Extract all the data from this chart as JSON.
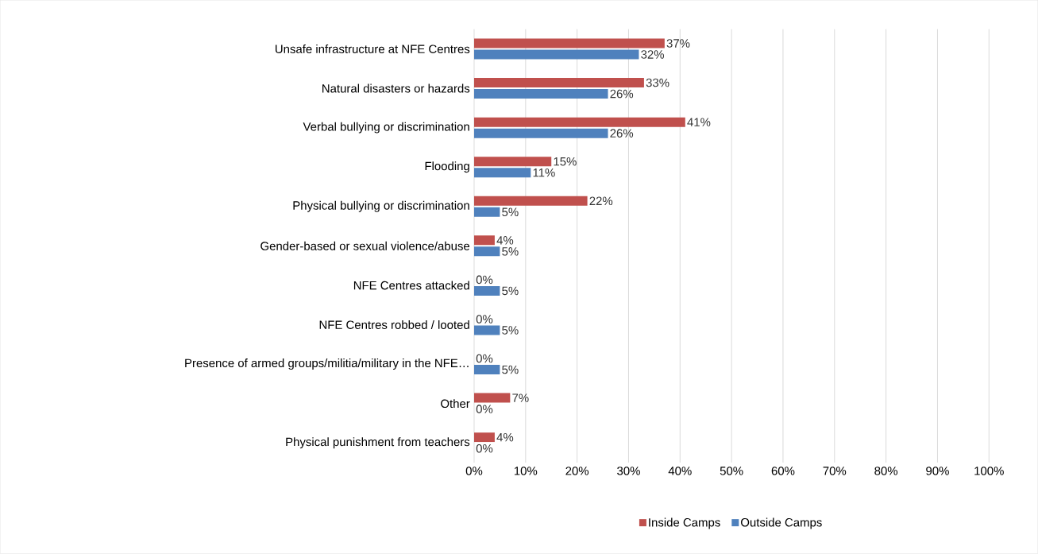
{
  "chart_data": {
    "type": "bar",
    "orientation": "horizontal",
    "categories": [
      "Unsafe infrastructure at NFE Centres",
      "Natural disasters or hazards",
      "Verbal bullying or discrimination",
      "Flooding",
      "Physical bullying or discrimination",
      "Gender-based or sexual violence/abuse",
      "NFE Centres attacked",
      "NFE Centres robbed / looted",
      "Presence of armed groups/militia/military in the NFE…",
      "Other",
      "Physical punishment from teachers"
    ],
    "series": [
      {
        "name": "Inside Camps",
        "color": "#c0504d",
        "values": [
          37,
          33,
          41,
          15,
          22,
          4,
          0,
          0,
          0,
          7,
          4
        ],
        "value_labels": [
          "37%",
          "33%",
          "41%",
          "15%",
          "22%",
          "4%",
          "0%",
          "0%",
          "0%",
          "7%",
          "4%"
        ]
      },
      {
        "name": "Outside Camps",
        "color": "#4f81bd",
        "values": [
          32,
          26,
          26,
          11,
          5,
          5,
          5,
          5,
          5,
          0,
          0
        ],
        "value_labels": [
          "32%",
          "26%",
          "26%",
          "11%",
          "5%",
          "5%",
          "5%",
          "5%",
          "5%",
          "0%",
          "0%"
        ]
      }
    ],
    "xlim": [
      0,
      100
    ],
    "xticks": [
      {
        "value": 0,
        "label": "0%"
      },
      {
        "value": 10,
        "label": "10%"
      },
      {
        "value": 20,
        "label": "20%"
      },
      {
        "value": 30,
        "label": "30%"
      },
      {
        "value": 40,
        "label": "40%"
      },
      {
        "value": 50,
        "label": "50%"
      },
      {
        "value": 60,
        "label": "60%"
      },
      {
        "value": 70,
        "label": "70%"
      },
      {
        "value": 80,
        "label": "80%"
      },
      {
        "value": 90,
        "label": "90%"
      },
      {
        "value": 100,
        "label": "100%"
      }
    ],
    "grid": "x",
    "legend": "bottom"
  }
}
